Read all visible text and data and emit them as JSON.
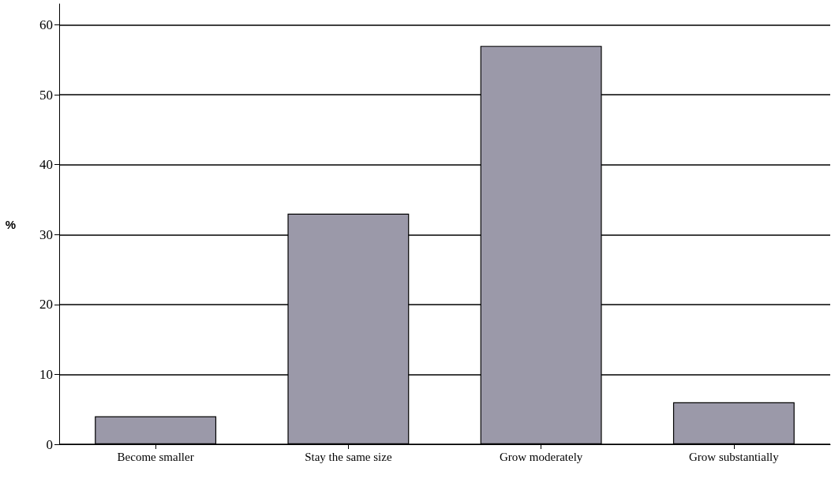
{
  "chart_data": {
    "type": "bar",
    "ylabel": "%",
    "categories": [
      "Become smaller",
      "Stay the same size",
      "Grow moderately",
      "Grow substantially"
    ],
    "values": [
      4,
      33,
      57,
      6
    ],
    "color": "#9b99a9",
    "ylim": [
      0,
      63
    ],
    "yticks": [
      0,
      10,
      20,
      30,
      40,
      50,
      60
    ],
    "grid": "y"
  }
}
